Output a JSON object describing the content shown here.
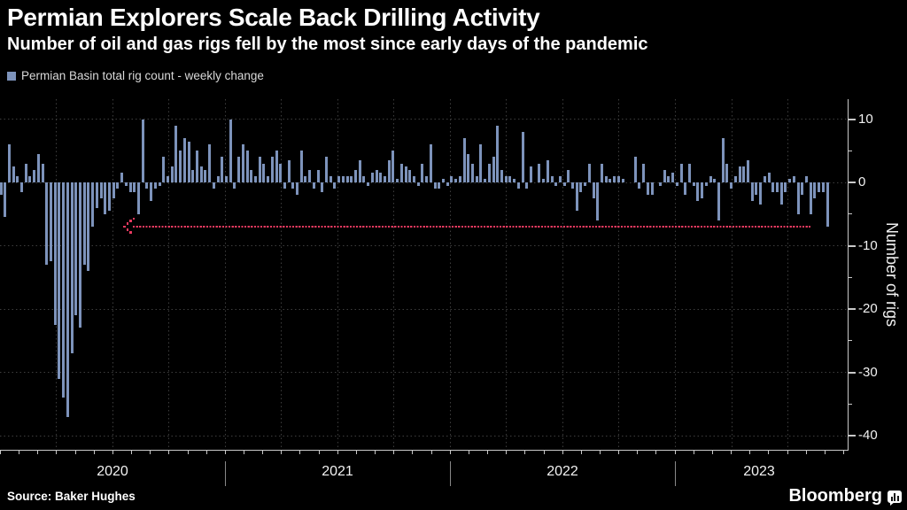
{
  "header": {
    "title": "Permian Explorers Scale Back Drilling Activity",
    "subtitle": "Number of oil and gas rigs fell by the most since early days of the pandemic"
  },
  "legend": {
    "swatch_color": "#7d93bb",
    "label": "Permian Basin total rig count - weekly change"
  },
  "footer": {
    "source": "Source: Baker Hughes",
    "brand": "Bloomberg",
    "brand_icon": "bar-chart-bubble-icon"
  },
  "chart_data": {
    "type": "bar",
    "title": "Permian Explorers Scale Back Drilling Activity",
    "subtitle": "Number of oil and gas rigs fell by the most since early days of the pandemic",
    "series_name": "Permian Basin total rig count - weekly change",
    "x_unit": "week",
    "x_years": [
      "2020",
      "2021",
      "2022",
      "2023"
    ],
    "ylabel": "Number of rigs",
    "y_ticks": [
      10,
      0,
      -10,
      -20,
      -30,
      -40
    ],
    "y_minor_ticks": [
      5,
      -5,
      -15,
      -25,
      -35
    ],
    "ylim": [
      -42,
      13
    ],
    "grid": "dotted",
    "legend_position": "top-left",
    "bar_color": "#7d93bb",
    "background_color": "#000000",
    "annotation": {
      "type": "dotted-arrow-pointing-left",
      "y_value": -7,
      "color": "#e8395f"
    },
    "values": [
      -2,
      -5.5,
      6,
      2.5,
      1,
      -1.5,
      3,
      1,
      2,
      4.5,
      3,
      -13,
      -12.5,
      -22.5,
      -31,
      -34,
      -37,
      -27,
      -21,
      -23,
      -13,
      -14,
      -7,
      -4,
      -2.5,
      -5,
      -4.5,
      -2.5,
      -1,
      1.5,
      -0.5,
      -1.5,
      -1.5,
      -5,
      10,
      -1,
      -3,
      -1,
      -0.5,
      4,
      1,
      2.5,
      9,
      5,
      7,
      6.5,
      2,
      5,
      2.5,
      2,
      6,
      -1,
      1,
      4,
      1,
      10,
      -1,
      4,
      6,
      5,
      2,
      1,
      4,
      3,
      1,
      4,
      5,
      3,
      -1,
      3.5,
      -1,
      -2,
      5,
      1,
      2,
      -1,
      2,
      -1.5,
      4,
      1,
      -1,
      1,
      1,
      1,
      1,
      2,
      3.5,
      1,
      -0.5,
      1.5,
      2,
      1.5,
      1,
      3.5,
      5,
      0.5,
      3,
      2.5,
      2,
      1,
      -0.5,
      3,
      1,
      6,
      -1,
      -1,
      0.5,
      -0.5,
      1,
      0.5,
      1,
      7,
      4.5,
      3,
      1,
      6,
      0.5,
      3,
      4,
      9,
      2,
      1,
      1,
      0.5,
      -1,
      8,
      -1,
      2.5,
      0,
      3,
      0.5,
      3.5,
      1,
      -0.5,
      1,
      -0.5,
      2,
      -1,
      -4.5,
      -1.5,
      -0.5,
      3,
      -2.5,
      -6,
      3,
      1,
      0.5,
      1,
      1,
      0.5,
      0,
      0,
      4,
      -1,
      3,
      -2,
      -2,
      0,
      -0.5,
      2,
      1,
      1.5,
      -0.5,
      3,
      -2,
      3,
      -0.5,
      -3,
      -2.5,
      -0.5,
      1,
      0.5,
      -6,
      7,
      3,
      -1,
      1,
      2.5,
      2.5,
      3.5,
      -3,
      -2,
      -3.5,
      1,
      1.5,
      -1.5,
      -1.5,
      -3.5,
      -1.5,
      0.5,
      1,
      -5,
      -2,
      1,
      -5,
      -2.5,
      -1.5,
      -1.5,
      -7
    ]
  }
}
